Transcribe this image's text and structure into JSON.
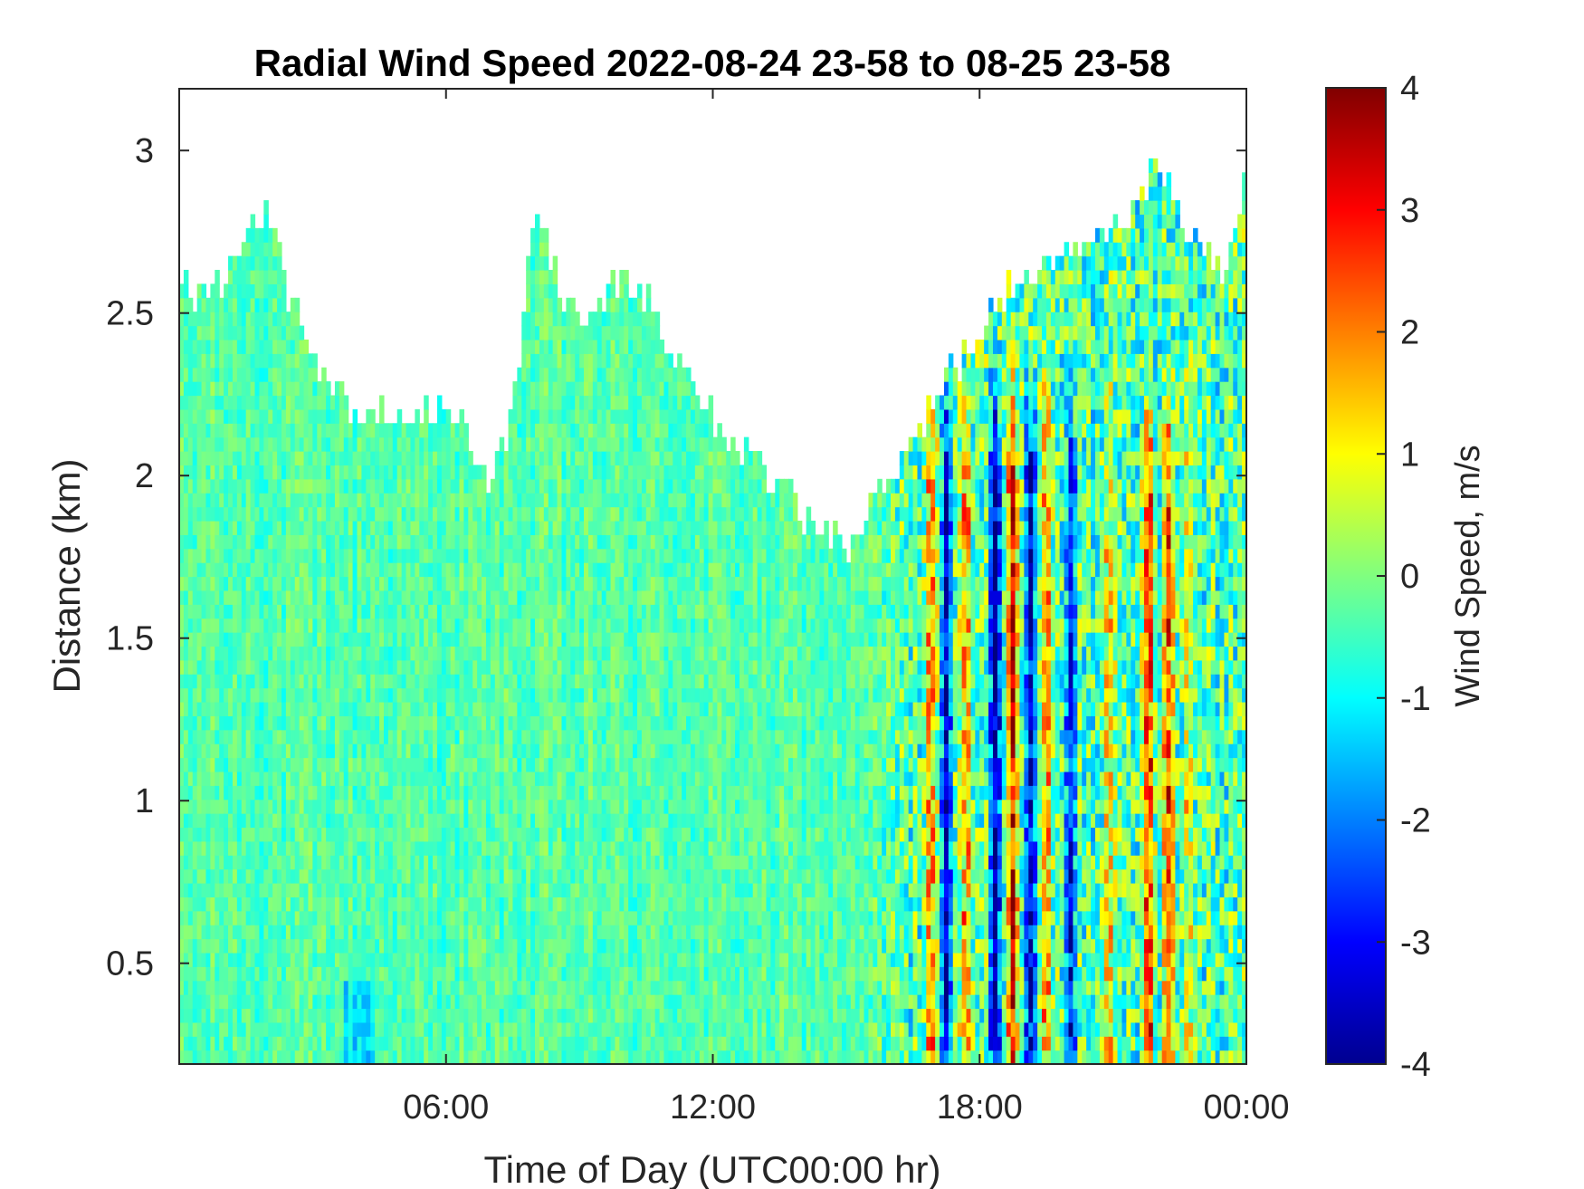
{
  "chart_data": {
    "type": "heatmap",
    "title": "Radial Wind Speed 2022-08-24 23-58 to 08-25 23-58",
    "xlabel": "Time of Day (UTC00:00 hr)",
    "ylabel": "Distance (km)",
    "xlim_hours": [
      0,
      24
    ],
    "ylim": [
      0.19,
      3.19
    ],
    "x_ticks": [
      {
        "hour": 6,
        "label": "06:00"
      },
      {
        "hour": 12,
        "label": "12:00"
      },
      {
        "hour": 18,
        "label": "18:00"
      },
      {
        "hour": 24,
        "label": "00:00"
      }
    ],
    "y_ticks": [
      {
        "value": 0.5,
        "label": "0.5"
      },
      {
        "value": 1,
        "label": "1"
      },
      {
        "value": 1.5,
        "label": "1.5"
      },
      {
        "value": 2,
        "label": "2"
      },
      {
        "value": 2.5,
        "label": "2.5"
      },
      {
        "value": 3,
        "label": "3"
      }
    ],
    "colorbar": {
      "label": "Wind Speed, m/s",
      "range": [
        -4,
        4
      ],
      "ticks": [
        {
          "value": 4,
          "label": "4"
        },
        {
          "value": 3,
          "label": "3"
        },
        {
          "value": 2,
          "label": "2"
        },
        {
          "value": 1,
          "label": "1"
        },
        {
          "value": 0,
          "label": "0"
        },
        {
          "value": -1,
          "label": "-1"
        },
        {
          "value": -2,
          "label": "-2"
        },
        {
          "value": -3,
          "label": "-3"
        },
        {
          "value": -4,
          "label": "-4"
        }
      ],
      "colormap": "jet"
    },
    "data_top_km": {
      "hours": [
        0,
        0.5,
        1,
        1.5,
        2,
        2.5,
        3,
        3.5,
        4,
        4.5,
        5,
        5.5,
        6,
        6.5,
        7,
        7.5,
        8,
        8.5,
        9,
        9.5,
        10,
        10.5,
        11,
        11.5,
        12,
        12.5,
        13,
        13.5,
        14,
        14.5,
        15,
        15.5,
        16,
        16.5,
        17,
        17.5,
        18,
        18.5,
        19,
        19.5,
        20,
        20.5,
        21,
        21.5,
        22,
        22.5,
        23,
        23.5,
        24
      ],
      "top": [
        2.6,
        2.55,
        2.6,
        2.75,
        2.85,
        2.55,
        2.35,
        2.25,
        2.2,
        2.2,
        2.2,
        2.2,
        2.2,
        2.15,
        1.95,
        2.2,
        2.85,
        2.6,
        2.5,
        2.55,
        2.6,
        2.55,
        2.4,
        2.35,
        2.2,
        2.1,
        2.05,
        1.95,
        1.9,
        1.85,
        1.75,
        1.9,
        2.0,
        2.1,
        2.25,
        2.35,
        2.45,
        2.55,
        2.6,
        2.65,
        2.7,
        2.75,
        2.75,
        2.85,
        2.95,
        2.8,
        2.75,
        2.6,
        2.9
      ]
    },
    "strong_features": [
      {
        "hour": 16.9,
        "value": 2.6
      },
      {
        "hour": 17.25,
        "value": -3.3
      },
      {
        "hour": 17.7,
        "value": 2.9
      },
      {
        "hour": 18.35,
        "value": -3.8
      },
      {
        "hour": 18.75,
        "value": 3.6
      },
      {
        "hour": 19.15,
        "value": -3.4
      },
      {
        "hour": 19.5,
        "value": 2.4
      },
      {
        "hour": 20.05,
        "value": -2.6
      },
      {
        "hour": 20.9,
        "value": 1.6
      },
      {
        "hour": 21.8,
        "value": 3.9
      },
      {
        "hour": 22.25,
        "value": 3.2
      },
      {
        "hour": 22.7,
        "value": 1.4
      }
    ]
  }
}
